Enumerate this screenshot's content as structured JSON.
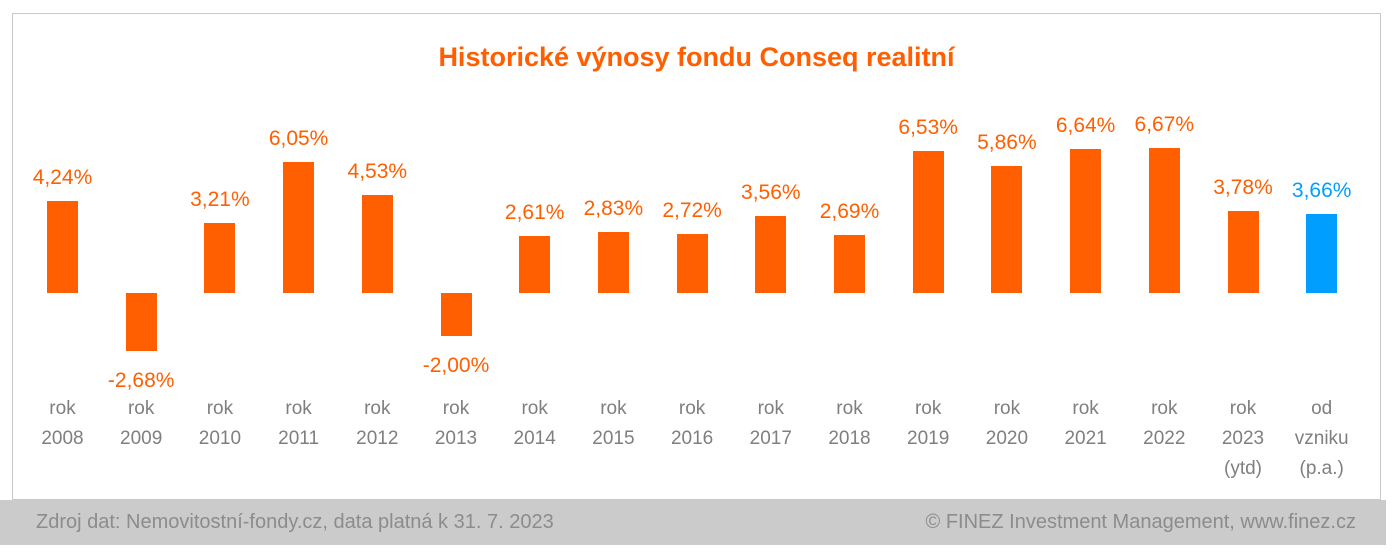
{
  "chart_data": {
    "type": "bar",
    "title": "Historické výnosy fondu Conseq realitní",
    "categories": [
      [
        "rok",
        "2008"
      ],
      [
        "rok",
        "2009"
      ],
      [
        "rok",
        "2010"
      ],
      [
        "rok",
        "2011"
      ],
      [
        "rok",
        "2012"
      ],
      [
        "rok",
        "2013"
      ],
      [
        "rok",
        "2014"
      ],
      [
        "rok",
        "2015"
      ],
      [
        "rok",
        "2016"
      ],
      [
        "rok",
        "2017"
      ],
      [
        "rok",
        "2018"
      ],
      [
        "rok",
        "2019"
      ],
      [
        "rok",
        "2020"
      ],
      [
        "rok",
        "2021"
      ],
      [
        "rok",
        "2022"
      ],
      [
        "rok",
        "2023",
        "(ytd)"
      ],
      [
        "od",
        "vzniku",
        "(p.a.)"
      ]
    ],
    "values": [
      4.24,
      -2.68,
      3.21,
      6.05,
      4.53,
      -2.0,
      2.61,
      2.83,
      2.72,
      3.56,
      2.69,
      6.53,
      5.86,
      6.64,
      6.67,
      3.78,
      3.66
    ],
    "value_labels": [
      "4,24%",
      "-2,68%",
      "3,21%",
      "6,05%",
      "4,53%",
      "-2,00%",
      "2,61%",
      "2,83%",
      "2,72%",
      "3,56%",
      "2,69%",
      "6,53%",
      "5,86%",
      "6,64%",
      "6,67%",
      "3,78%",
      "3,66%"
    ],
    "highlight_index": 16,
    "xlabel": "",
    "ylabel": "",
    "ylim": [
      -3.5,
      7.5
    ],
    "grid": false,
    "legend": null,
    "colors": {
      "bar": "#FF5F00",
      "highlight": "#009FFF",
      "title": "#FF5F00",
      "axis_text": "#7F7F7F",
      "frame_border": "#C9C9C9",
      "footer_bg": "#CBCBCB",
      "footer_text": "#8C8C8C"
    }
  },
  "footer": {
    "source": "Zdroj dat: Nemovitostní-fondy.cz, data platná k 31. 7. 2023",
    "copyright": "© FINEZ Investment Management, www.finez.cz"
  }
}
